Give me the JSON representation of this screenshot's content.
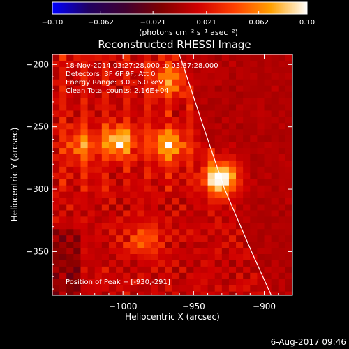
{
  "chart_data": {
    "type": "heatmap",
    "title": "Reconstructed RHESSI Image",
    "xlabel": "Heliocentric X (arcsec)",
    "ylabel": "Heliocentric Y (arcsec)",
    "xlim": [
      -1050,
      -880
    ],
    "ylim": [
      -385,
      -192
    ],
    "x_ticks": [
      -1000,
      -950,
      -900
    ],
    "x_tick_labels": [
      "−1000",
      "−950",
      "−900"
    ],
    "y_ticks": [
      -200,
      -250,
      -300,
      -350
    ],
    "y_tick_labels": [
      "−200",
      "−250",
      "−300",
      "−350"
    ],
    "colorbar": {
      "ticks": [
        -0.1,
        -0.062,
        -0.021,
        0.021,
        0.062,
        0.1
      ],
      "tick_labels": [
        "−0.10",
        "−0.062",
        "−0.021",
        "0.021",
        "0.062",
        "0.10"
      ],
      "range": [
        -0.1,
        0.1
      ],
      "label": "(photons cm⁻² s⁻¹ asec⁻²)",
      "colormap": [
        "#0000ff",
        "#200060",
        "#400030",
        "#800000",
        "#d00000",
        "#ff4000",
        "#ffa000",
        "#ffffff"
      ]
    },
    "annotations": [
      "18-Nov-2014 03:27:28.000 to 03:37:28.000",
      "Detectors: 3F 6F 9F, Att 0",
      "Energy Range: 3.0 - 6.0 keV",
      "Clean     Total counts: 2.16E+04"
    ],
    "peak_label": "Position of Peak = [-930,-291]",
    "peak": [
      -930,
      -291
    ],
    "sources": [
      {
        "x": -930,
        "y": -291,
        "intensity": 0.1
      },
      {
        "x": -1003,
        "y": -262,
        "intensity": 0.075
      },
      {
        "x": -968,
        "y": -265,
        "intensity": 0.065
      },
      {
        "x": -967,
        "y": -212,
        "intensity": 0.05
      },
      {
        "x": -1030,
        "y": -265,
        "intensity": 0.045
      },
      {
        "x": -985,
        "y": -340,
        "intensity": 0.04
      }
    ],
    "limb_curve": [
      {
        "x": -960,
        "y": -192
      },
      {
        "x": -943,
        "y": -250
      },
      {
        "x": -928,
        "y": -300
      },
      {
        "x": -909,
        "y": -350
      },
      {
        "x": -895,
        "y": -385
      }
    ],
    "grid": false
  },
  "footer": {
    "date": "6-Aug-2017 09:46"
  }
}
